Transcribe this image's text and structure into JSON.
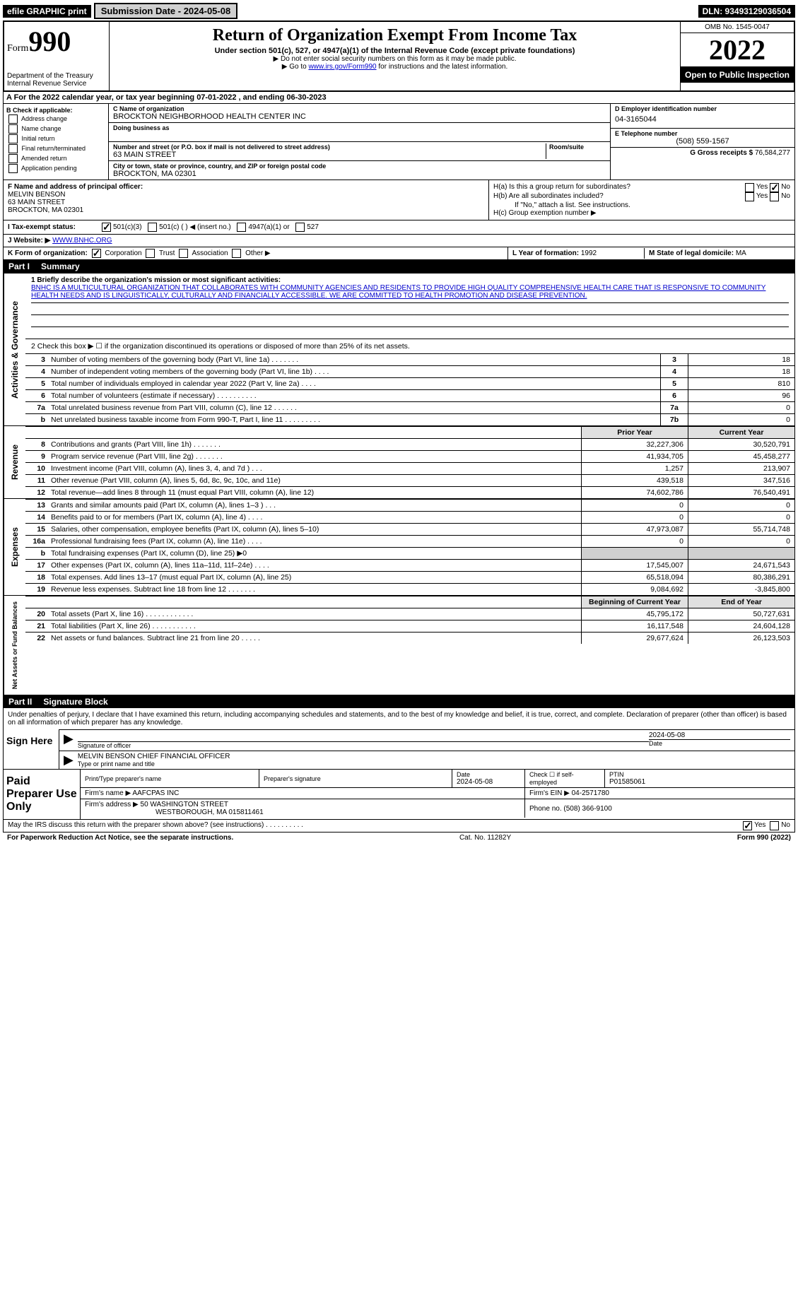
{
  "top": {
    "efile": "efile GRAPHIC print",
    "submission_label": "Submission Date - 2024-05-08",
    "dln": "DLN: 93493129036504"
  },
  "header": {
    "form_label": "Form",
    "form_number": "990",
    "dept": "Department of the Treasury",
    "irs": "Internal Revenue Service",
    "title": "Return of Organization Exempt From Income Tax",
    "subtitle": "Under section 501(c), 527, or 4947(a)(1) of the Internal Revenue Code (except private foundations)",
    "note1": "▶ Do not enter social security numbers on this form as it may be made public.",
    "note2_pre": "▶ Go to ",
    "note2_link": "www.irs.gov/Form990",
    "note2_post": " for instructions and the latest information.",
    "omb": "OMB No. 1545-0047",
    "year": "2022",
    "inspection": "Open to Public Inspection"
  },
  "sectionA": "A For the 2022 calendar year, or tax year beginning 07-01-2022    , and ending 06-30-2023",
  "sectionB": {
    "header": "B Check if applicable:",
    "opts": [
      "Address change",
      "Name change",
      "Initial return",
      "Final return/terminated",
      "Amended return",
      "Application pending"
    ]
  },
  "sectionC": {
    "name_label": "C Name of organization",
    "name": "BROCKTON NEIGHBORHOOD HEALTH CENTER INC",
    "dba_label": "Doing business as",
    "addr_label": "Number and street (or P.O. box if mail is not delivered to street address)",
    "room_label": "Room/suite",
    "addr": "63 MAIN STREET",
    "city_label": "City or town, state or province, country, and ZIP or foreign postal code",
    "city": "BROCKTON, MA  02301"
  },
  "sectionD": {
    "label": "D Employer identification number",
    "val": "04-3165044"
  },
  "sectionE": {
    "label": "E Telephone number",
    "val": "(508) 559-1567"
  },
  "sectionG": {
    "label": "G Gross receipts $",
    "val": "76,584,277"
  },
  "sectionF": {
    "label": "F  Name and address of principal officer:",
    "name": "MELVIN BENSON",
    "addr1": "63 MAIN STREET",
    "addr2": "BROCKTON, MA  02301"
  },
  "sectionH": {
    "a": "H(a)  Is this a group return for subordinates?",
    "b": "H(b)  Are all subordinates included?",
    "b_note": "If \"No,\" attach a list. See instructions.",
    "c": "H(c)  Group exemption number ▶"
  },
  "sectionI": {
    "label": "I   Tax-exempt status:",
    "o1": "501(c)(3)",
    "o2": "501(c) (  ) ◀ (insert no.)",
    "o3": "4947(a)(1) or",
    "o4": "527"
  },
  "sectionJ": {
    "label": "J   Website: ▶",
    "val": "WWW.BNHC.ORG"
  },
  "sectionK": {
    "label": "K Form of organization:",
    "opts": [
      "Corporation",
      "Trust",
      "Association",
      "Other ▶"
    ]
  },
  "sectionL": {
    "year_label": "L Year of formation:",
    "year": "1992",
    "state_label": "M State of legal domicile:",
    "state": "MA"
  },
  "part1": {
    "header_pn": "Part I",
    "header_title": "Summary",
    "line1_label": "1  Briefly describe the organization's mission or most significant activities:",
    "mission": "BNHC IS A MULTICULTURAL ORGANIZATION THAT COLLABORATES WITH COMMUNITY AGENCIES AND RESIDENTS TO PROVIDE HIGH QUALITY COMPREHENSIVE HEALTH CARE THAT IS RESPONSIVE TO COMMUNITY HEALTH NEEDS AND IS LINGUISTICALLY, CULTURALLY AND FINANCIALLY ACCESSIBLE. WE ARE COMMITTED TO HEALTH PROMOTION AND DISEASE PREVENTION.",
    "line2": "2   Check this box ▶ ☐  if the organization discontinued its operations or disposed of more than 25% of its net assets.",
    "side_gov": "Activities & Governance",
    "side_rev": "Revenue",
    "side_exp": "Expenses",
    "side_net": "Net Assets or Fund Balances",
    "gov_lines": [
      {
        "n": "3",
        "t": "Number of voting members of the governing body (Part VI, line 1a)  .    .    .    .    .    .    .",
        "b": "3",
        "v": "18"
      },
      {
        "n": "4",
        "t": "Number of independent voting members of the governing body (Part VI, line 1b)  .    .    .    .",
        "b": "4",
        "v": "18"
      },
      {
        "n": "5",
        "t": "Total number of individuals employed in calendar year 2022 (Part V, line 2a)  .    .    .    .",
        "b": "5",
        "v": "810"
      },
      {
        "n": "6",
        "t": "Total number of volunteers (estimate if necessary)   .    .    .    .    .    .    .    .    .    .",
        "b": "6",
        "v": "96"
      },
      {
        "n": "7a",
        "t": "Total unrelated business revenue from Part VIII, column (C), line 12  .    .    .    .    .    .",
        "b": "7a",
        "v": "0"
      },
      {
        "n": "b",
        "t": "Net unrelated business taxable income from Form 990-T, Part I, line 11  .    .    .    .    .    .    .    .    .",
        "b": "7b",
        "v": "0"
      }
    ],
    "col_prior": "Prior Year",
    "col_current": "Current Year",
    "rev_lines": [
      {
        "n": "8",
        "t": "Contributions and grants (Part VIII, line 1h)   .     .     .     .     .     .     .",
        "p": "32,227,306",
        "c": "30,520,791"
      },
      {
        "n": "9",
        "t": "Program service revenue (Part VIII, line 2g)   .     .     .     .     .     .     .",
        "p": "41,934,705",
        "c": "45,458,277"
      },
      {
        "n": "10",
        "t": "Investment income (Part VIII, column (A), lines 3, 4, and 7d )   .     .     .",
        "p": "1,257",
        "c": "213,907"
      },
      {
        "n": "11",
        "t": "Other revenue (Part VIII, column (A), lines 5, 6d, 8c, 9c, 10c, and 11e)",
        "p": "439,518",
        "c": "347,516"
      },
      {
        "n": "12",
        "t": "Total revenue—add lines 8 through 11 (must equal Part VIII, column (A), line 12)",
        "p": "74,602,786",
        "c": "76,540,491"
      }
    ],
    "exp_lines": [
      {
        "n": "13",
        "t": "Grants and similar amounts paid (Part IX, column (A), lines 1–3 )  .    .    .",
        "p": "0",
        "c": "0"
      },
      {
        "n": "14",
        "t": "Benefits paid to or for members (Part IX, column (A), line 4)  .    .    .    .",
        "p": "0",
        "c": "0"
      },
      {
        "n": "15",
        "t": "Salaries, other compensation, employee benefits (Part IX, column (A), lines 5–10)",
        "p": "47,973,087",
        "c": "55,714,748"
      },
      {
        "n": "16a",
        "t": "Professional fundraising fees (Part IX, column (A), line 11e)  .    .    .    .",
        "p": "0",
        "c": "0"
      },
      {
        "n": "b",
        "t": "Total fundraising expenses (Part IX, column (D), line 25) ▶0",
        "p": "",
        "c": "",
        "grey": true
      },
      {
        "n": "17",
        "t": "Other expenses (Part IX, column (A), lines 11a–11d, 11f–24e)   .     .     .     .",
        "p": "17,545,007",
        "c": "24,671,543"
      },
      {
        "n": "18",
        "t": "Total expenses. Add lines 13–17 (must equal Part IX, column (A), line 25)",
        "p": "65,518,094",
        "c": "80,386,291"
      },
      {
        "n": "19",
        "t": "Revenue less expenses. Subtract line 18 from line 12  .    .    .    .    .    .    .",
        "p": "9,084,692",
        "c": "-3,845,800"
      }
    ],
    "col_begin": "Beginning of Current Year",
    "col_end": "End of Year",
    "net_lines": [
      {
        "n": "20",
        "t": "Total assets (Part X, line 16)  .    .    .    .    .    .    .    .    .    .    .    .",
        "p": "45,795,172",
        "c": "50,727,631"
      },
      {
        "n": "21",
        "t": "Total liabilities (Part X, line 26)  .    .    .    .    .    .    .    .    .    .    .",
        "p": "16,117,548",
        "c": "24,604,128"
      },
      {
        "n": "22",
        "t": "Net assets or fund balances. Subtract line 21 from line 20  .    .    .    .    .",
        "p": "29,677,624",
        "c": "26,123,503"
      }
    ]
  },
  "part2": {
    "header_pn": "Part II",
    "header_title": "Signature Block",
    "penalties": "Under penalties of perjury, I declare that I have examined this return, including accompanying schedules and statements, and to the best of my knowledge and belief, it is true, correct, and complete. Declaration of preparer (other than officer) is based on all information of which preparer has any knowledge.",
    "sign_here": "Sign Here",
    "sig_officer": "Signature of officer",
    "sig_date": "2024-05-08",
    "date_label": "Date",
    "officer_name": "MELVIN BENSON  CHIEF FINANCIAL OFFICER",
    "officer_label": "Type or print name and title",
    "paid": "Paid Preparer Use Only",
    "prep_name_label": "Print/Type preparer's name",
    "prep_sig_label": "Preparer's signature",
    "prep_date_label": "Date",
    "prep_date": "2024-05-08",
    "prep_check": "Check ☐ if self-employed",
    "ptin_label": "PTIN",
    "ptin": "P01585061",
    "firm_name_label": "Firm's name    ▶",
    "firm_name": "AAFCPAS INC",
    "firm_ein_label": "Firm's EIN ▶",
    "firm_ein": "04-2571780",
    "firm_addr_label": "Firm's address ▶",
    "firm_addr1": "50 WASHINGTON STREET",
    "firm_addr2": "WESTBOROUGH, MA  015811461",
    "phone_label": "Phone no.",
    "phone": "(508) 366-9100",
    "discuss": "May the IRS discuss this return with the preparer shown above? (see instructions)   .     .     .     .     .     .     .     .     .     .",
    "yes": "Yes",
    "no": "No"
  },
  "footer": {
    "left": "For Paperwork Reduction Act Notice, see the separate instructions.",
    "center": "Cat. No. 11282Y",
    "right": "Form 990 (2022)"
  }
}
